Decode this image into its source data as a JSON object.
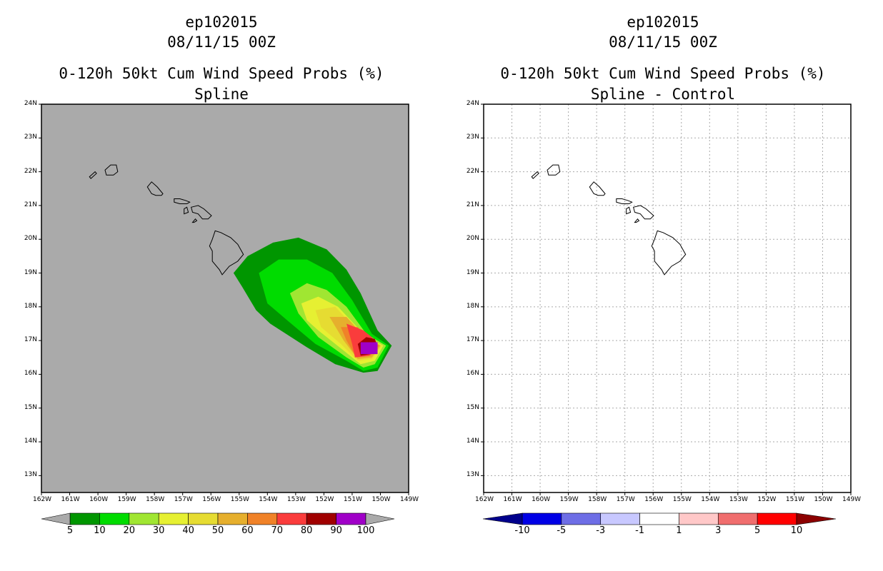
{
  "panels": [
    {
      "title_line1": "ep102015",
      "title_line2": "08/11/15 00Z",
      "title_line3": "0-120h 50kt Cum Wind Speed Probs (%)",
      "title_line4": "Spline"
    },
    {
      "title_line1": "ep102015",
      "title_line2": "08/11/15 00Z",
      "title_line3": "0-120h 50kt Cum Wind Speed Probs (%)",
      "title_line4": "Spline - Control"
    }
  ],
  "chart_data": [
    {
      "type": "heatmap",
      "title": "0-120h 50kt Cum Wind Speed Probs (%)",
      "subtitle": "Spline",
      "storm": "ep102015",
      "time": "08/11/15 00Z",
      "xlim": [
        -162,
        -149
      ],
      "ylim": [
        12.5,
        24
      ],
      "x_ticks": [
        "162W",
        "161W",
        "160W",
        "159W",
        "158W",
        "157W",
        "156W",
        "155W",
        "154W",
        "153W",
        "152W",
        "151W",
        "150W",
        "149W"
      ],
      "y_ticks": [
        "13N",
        "14N",
        "15N",
        "16N",
        "17N",
        "18N",
        "19N",
        "20N",
        "21N",
        "22N",
        "23N",
        "24N"
      ],
      "background": "#aaaaaa",
      "grid": false,
      "colorbar": {
        "labels": [
          "5",
          "10",
          "20",
          "30",
          "40",
          "50",
          "60",
          "70",
          "80",
          "90",
          "100"
        ],
        "colors": [
          "#009600",
          "#00dc00",
          "#a0e632",
          "#e6dc32",
          "#e6af2d",
          "#f08228",
          "#fa3c3c",
          "#f00082",
          "#a000c8"
        ],
        "extended_colors": [
          "#009600",
          "#00dc00",
          "#a0e632",
          "#e6f032",
          "#e6dc32",
          "#e6af2d",
          "#f08228",
          "#fa3c3c",
          "#a00000",
          "#a000c8"
        ]
      },
      "contours": [
        {
          "level": 5,
          "color": "#009600",
          "polygon": [
            [
              -155.2,
              19.0
            ],
            [
              -154.7,
              19.5
            ],
            [
              -153.8,
              19.9
            ],
            [
              -152.9,
              20.05
            ],
            [
              -151.9,
              19.7
            ],
            [
              -151.2,
              19.1
            ],
            [
              -150.7,
              18.4
            ],
            [
              -150.1,
              17.3
            ],
            [
              -149.6,
              16.85
            ],
            [
              -150.1,
              16.1
            ],
            [
              -150.6,
              16.05
            ],
            [
              -151.6,
              16.3
            ],
            [
              -152.6,
              16.8
            ],
            [
              -153.9,
              17.5
            ],
            [
              -154.4,
              17.9
            ],
            [
              -154.9,
              18.6
            ]
          ]
        },
        {
          "level": 10,
          "color": "#00dc00",
          "polygon": [
            [
              -154.3,
              19.0
            ],
            [
              -153.6,
              19.4
            ],
            [
              -152.6,
              19.4
            ],
            [
              -151.7,
              19.0
            ],
            [
              -151.0,
              18.2
            ],
            [
              -150.3,
              17.2
            ],
            [
              -149.7,
              16.85
            ],
            [
              -150.1,
              16.2
            ],
            [
              -150.6,
              16.1
            ],
            [
              -151.2,
              16.4
            ],
            [
              -152.3,
              16.9
            ],
            [
              -153.3,
              17.6
            ],
            [
              -154.0,
              18.1
            ]
          ]
        },
        {
          "level": 20,
          "color": "#a0e632",
          "polygon": [
            [
              -153.2,
              18.4
            ],
            [
              -152.6,
              18.7
            ],
            [
              -151.9,
              18.5
            ],
            [
              -151.2,
              18.0
            ],
            [
              -150.5,
              17.2
            ],
            [
              -149.8,
              16.85
            ],
            [
              -150.2,
              16.3
            ],
            [
              -150.6,
              16.2
            ],
            [
              -151.2,
              16.5
            ],
            [
              -152.2,
              17.1
            ],
            [
              -152.9,
              17.8
            ]
          ]
        },
        {
          "level": 30,
          "color": "#e6f032",
          "polygon": [
            [
              -152.8,
              18.1
            ],
            [
              -152.2,
              18.3
            ],
            [
              -151.5,
              18.0
            ],
            [
              -150.6,
              17.2
            ],
            [
              -149.9,
              16.85
            ],
            [
              -150.2,
              16.4
            ],
            [
              -150.7,
              16.3
            ],
            [
              -151.3,
              16.7
            ],
            [
              -152.2,
              17.3
            ],
            [
              -152.6,
              17.6
            ]
          ]
        },
        {
          "level": 40,
          "color": "#e6dc32",
          "polygon": [
            [
              -152.3,
              17.9
            ],
            [
              -151.6,
              18.0
            ],
            [
              -150.7,
              17.2
            ],
            [
              -149.95,
              16.85
            ],
            [
              -150.3,
              16.45
            ],
            [
              -150.8,
              16.4
            ],
            [
              -151.4,
              16.9
            ],
            [
              -152.1,
              17.4
            ]
          ]
        },
        {
          "level": 50,
          "color": "#e6af2d",
          "polygon": [
            [
              -151.8,
              17.7
            ],
            [
              -151.2,
              17.7
            ],
            [
              -150.6,
              17.15
            ],
            [
              -150.0,
              16.85
            ],
            [
              -150.3,
              16.5
            ],
            [
              -150.8,
              16.45
            ],
            [
              -151.3,
              17.0
            ]
          ]
        },
        {
          "level": 60,
          "color": "#f08228",
          "polygon": [
            [
              -151.4,
              17.4
            ],
            [
              -150.8,
              17.4
            ],
            [
              -150.4,
              17.05
            ],
            [
              -150.05,
              16.85
            ],
            [
              -150.35,
              16.55
            ],
            [
              -150.85,
              16.5
            ],
            [
              -151.2,
              17.0
            ]
          ]
        },
        {
          "level": 70,
          "color": "#fa3c3c",
          "polygon": [
            [
              -151.2,
              17.5
            ],
            [
              -150.6,
              17.3
            ],
            [
              -150.3,
              17.1
            ],
            [
              -150.1,
              16.85
            ],
            [
              -150.4,
              16.55
            ],
            [
              -150.9,
              16.5
            ],
            [
              -151.0,
              16.9
            ]
          ]
        },
        {
          "level": 80,
          "color": "#a00000",
          "polygon": [
            [
              -150.8,
              16.9
            ],
            [
              -150.5,
              17.1
            ],
            [
              -150.2,
              17.05
            ],
            [
              -150.1,
              16.85
            ],
            [
              -150.35,
              16.6
            ],
            [
              -150.7,
              16.55
            ]
          ]
        },
        {
          "level": 90,
          "color": "#a000c8",
          "polygon": [
            [
              -150.7,
              16.95
            ],
            [
              -150.1,
              16.95
            ],
            [
              -150.1,
              16.6
            ],
            [
              -150.7,
              16.6
            ]
          ]
        }
      ]
    },
    {
      "type": "heatmap",
      "title": "0-120h 50kt Cum Wind Speed Probs (%)",
      "subtitle": "Spline - Control",
      "storm": "ep102015",
      "time": "08/11/15 00Z",
      "xlim": [
        -162,
        -149
      ],
      "ylim": [
        12.5,
        24
      ],
      "x_ticks": [
        "162W",
        "161W",
        "160W",
        "159W",
        "158W",
        "157W",
        "156W",
        "155W",
        "154W",
        "153W",
        "152W",
        "151W",
        "150W",
        "149W"
      ],
      "y_ticks": [
        "13N",
        "14N",
        "15N",
        "16N",
        "17N",
        "18N",
        "19N",
        "20N",
        "21N",
        "22N",
        "23N",
        "24N"
      ],
      "background": "#ffffff",
      "grid": true,
      "colorbar": {
        "labels": [
          "-10",
          "-5",
          "-3",
          "-1",
          "1",
          "3",
          "5",
          "10"
        ],
        "colors": [
          "#00008c",
          "#0000e6",
          "#6e6ee6",
          "#c8c8ff",
          "#ffffff",
          "#ffc8c8",
          "#f06e6e",
          "#ff0000",
          "#8c0000"
        ]
      },
      "contours": []
    }
  ]
}
